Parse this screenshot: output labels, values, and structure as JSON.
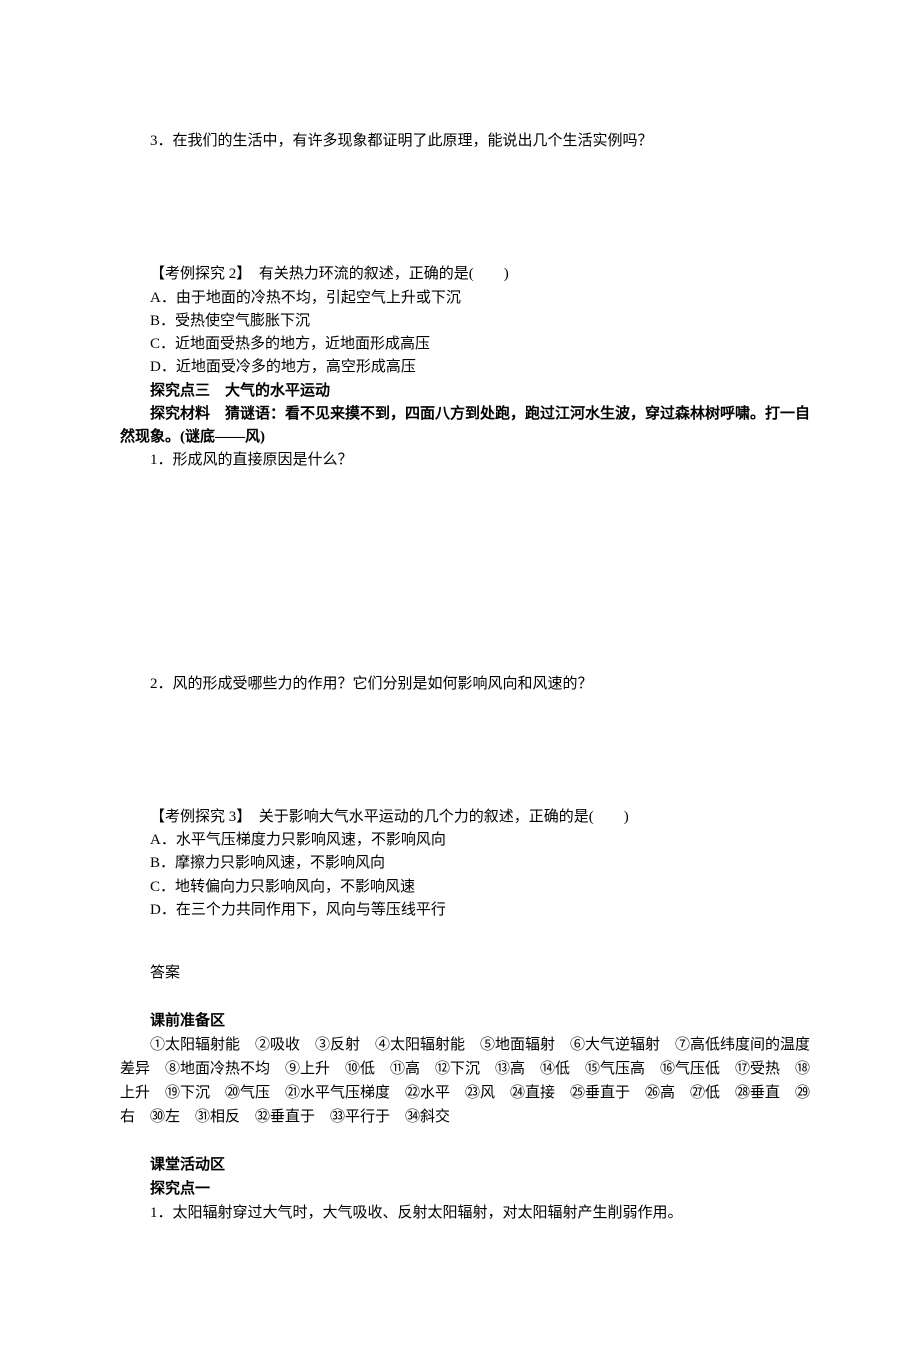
{
  "q3": "3．在我们的生活中，有许多现象都证明了此原理，能说出几个生活实例吗？",
  "ex2": {
    "title": "【考例探究 2】　有关热力环流的叙述，正确的是(　　)",
    "A": "A．由于地面的冷热不均，引起空气上升或下沉",
    "B": "B．受热使空气膨胀下沉",
    "C": "C．近地面受热多的地方，近地面形成高压",
    "D": "D．近地面受冷多的地方，高空形成高压"
  },
  "section3": {
    "heading": "探究点三　大气的水平运动",
    "material": "探究材料　猜谜语：看不见来摸不到，四面八方到处跑，跑过江河水生波，穿过森林树呼啸。打一自然现象。(谜底——风)",
    "q1": "1．形成风的直接原因是什么？",
    "q2": "2．风的形成受哪些力的作用？它们分别是如何影响风向和风速的？"
  },
  "ex3": {
    "title": "【考例探究 3】　关于影响大气水平运动的几个力的叙述，正确的是(　　)",
    "A": "A．水平气压梯度力只影响风速，不影响风向",
    "B": "B．摩擦力只影响风速，不影响风向",
    "C": "C．地转偏向力只影响风向，不影响风速",
    "D": "D．在三个力共同作用下，风向与等压线平行"
  },
  "answers": {
    "heading": "答案",
    "prep_heading": "课前准备区",
    "prep_line": "①太阳辐射能　②吸收　③反射　④太阳辐射能　⑤地面辐射　⑥大气逆辐射　⑦高低纬度间的温度差异　⑧地面冷热不均　⑨上升　⑩低　⑪高　⑫下沉　⑬高　⑭低　⑮气压高　⑯气压低　⑰受热　⑱上升　⑲下沉　⑳气压　㉑水平气压梯度　㉒水平　㉓风　㉔直接　㉕垂直于　㉖高　㉗低　㉘垂直　㉙右　㉚左　㉛相反　㉜垂直于　㉝平行于　㉞斜交",
    "class_heading": "课堂活动区",
    "p1_heading": "探究点一",
    "p1_line": "1．太阳辐射穿过大气时，大气吸收、反射太阳辐射，对太阳辐射产生削弱作用。"
  }
}
